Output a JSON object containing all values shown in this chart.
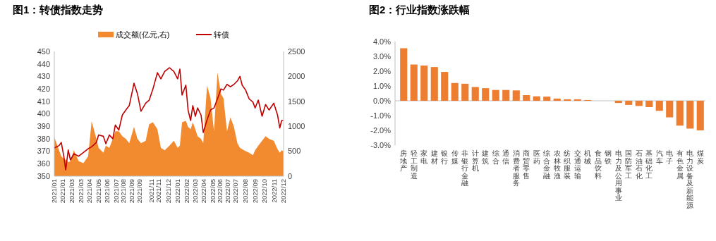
{
  "chart_data": [
    {
      "type": "line",
      "title": "图1：转债指数走势",
      "legend": "top",
      "x": [
        "2021-01-04",
        "2021-01-19",
        "2021-01-26",
        "2021-02-03",
        "2021-02-09",
        "2021-02-17",
        "2021-02-24",
        "2021-03-07",
        "2021-03-22",
        "2021-04-06",
        "2021-04-21",
        "2021-05-02",
        "2021-05-17",
        "2021-05-24",
        "2021-06-08",
        "2021-06-16",
        "2021-06-27",
        "2021-07-08",
        "2021-07-16",
        "2021-07-27",
        "2021-08-07",
        "2021-08-18",
        "2021-08-29",
        "2021-09-13",
        "2021-09-24",
        "2021-10-05",
        "2021-10-20",
        "2021-10-31",
        "2021-11-12",
        "2021-11-26",
        "2021-12-07",
        "2021-12-19",
        "2022-01-03",
        "2022-01-17",
        "2022-01-29",
        "2022-02-05",
        "2022-02-12",
        "2022-02-24",
        "2022-03-03",
        "2022-03-11",
        "2022-03-18",
        "2022-03-26",
        "2022-04-02",
        "2022-04-13",
        "2022-04-20",
        "2022-05-02",
        "2022-05-13",
        "2022-05-24",
        "2022-06-04",
        "2022-06-15",
        "2022-06-23",
        "2022-07-04",
        "2022-07-15",
        "2022-07-26",
        "2022-08-06",
        "2022-08-14",
        "2022-08-21",
        "2022-09-01",
        "2022-09-12",
        "2022-09-24",
        "2022-10-01",
        "2022-10-11",
        "2022-10-23",
        "2022-11-03",
        "2022-11-14",
        "2022-11-29",
        "2022-12-11",
        "2022-12-18",
        "2022-12-24",
        "2022-12-29"
      ],
      "series": [
        {
          "name": "成交额(亿元,右)",
          "type": "area",
          "axis": "y2",
          "color": "#f28a30",
          "values": [
            780,
            520,
            400,
            350,
            330,
            280,
            300,
            520,
            300,
            260,
            400,
            1100,
            750,
            570,
            470,
            610,
            570,
            750,
            900,
            900,
            800,
            750,
            660,
            990,
            750,
            660,
            710,
            1040,
            1080,
            940,
            570,
            520,
            610,
            710,
            570,
            610,
            1080,
            1110,
            990,
            940,
            1080,
            940,
            800,
            750,
            660,
            1820,
            1560,
            900,
            2080,
            1650,
            1560,
            900,
            1180,
            990,
            660,
            570,
            540,
            500,
            470,
            420,
            520,
            610,
            710,
            800,
            750,
            710,
            540,
            470,
            520,
            500
          ]
        },
        {
          "name": "转债",
          "type": "line",
          "color": "#c00000",
          "values": [
            372.6,
            374.5,
            377,
            366,
            355,
            371,
            363,
            368,
            366,
            369,
            372,
            373.5,
            377,
            383,
            382,
            376,
            383,
            380,
            391,
            387,
            399,
            403,
            406.6,
            424.5,
            416,
            402,
            408.5,
            411,
            420,
            433,
            428,
            434,
            437,
            434,
            428,
            435.8,
            415,
            423,
            403,
            394.6,
            406.6,
            398,
            404.7,
            399,
            385,
            395,
            403,
            404.7,
            412,
            420,
            419,
            423.6,
            421.7,
            423.6,
            426.4,
            430,
            423,
            419,
            412,
            409.4,
            404.7,
            411,
            398,
            407.5,
            403,
            408.5,
            399,
            388.7,
            394.6,
            394.6
          ]
        }
      ],
      "xlim": [
        "2021-01-04",
        "2022-12-30"
      ],
      "xticks": [
        {
          "value": "2021-01-04",
          "label": "2021/01"
        },
        {
          "value": "2021-01-29",
          "label": "2021/01"
        },
        {
          "value": "2021-03-01",
          "label": "2021/03"
        },
        {
          "value": "2021-03-29",
          "label": "2021/03"
        },
        {
          "value": "2021-04-25",
          "label": "2021/04"
        },
        {
          "value": "2021-05-23",
          "label": "2021/05"
        },
        {
          "value": "2021-06-20",
          "label": "2021/06"
        },
        {
          "value": "2021-07-18",
          "label": "2021/07"
        },
        {
          "value": "2021-08-10",
          "label": "2021/08"
        },
        {
          "value": "2021-09-05",
          "label": "2021/09"
        },
        {
          "value": "2021-09-30",
          "label": "2021/09"
        },
        {
          "value": "2021-11-06",
          "label": "2021/11"
        },
        {
          "value": "2021-11-30",
          "label": "2021/11"
        },
        {
          "value": "2021-12-31",
          "label": "2021/12"
        },
        {
          "value": "2022-01-29",
          "label": "2022/01"
        },
        {
          "value": "2022-02-26",
          "label": "2022/02"
        },
        {
          "value": "2022-03-26",
          "label": "2022/03"
        },
        {
          "value": "2022-04-22",
          "label": "2022/04"
        },
        {
          "value": "2022-05-20",
          "label": "2022/05"
        },
        {
          "value": "2022-06-12",
          "label": "2022/06"
        },
        {
          "value": "2022-07-05",
          "label": "2022/07"
        },
        {
          "value": "2022-07-31",
          "label": "2022/07"
        },
        {
          "value": "2022-08-31",
          "label": "2022/08"
        },
        {
          "value": "2022-09-30",
          "label": "2022/09"
        },
        {
          "value": "2022-10-31",
          "label": "2022/10"
        },
        {
          "value": "2022-11-30",
          "label": "2022/11"
        },
        {
          "value": "2022-12-29",
          "label": "2022/12"
        }
      ],
      "ylim": [
        350,
        450
      ],
      "yticks": [
        350,
        360,
        370,
        380,
        390,
        400,
        410,
        420,
        430,
        440,
        450
      ],
      "y2lim": [
        0,
        2500
      ],
      "y2ticks": [
        0,
        500,
        1000,
        1500,
        2000,
        2500
      ]
    },
    {
      "type": "bar",
      "title": "图2：行业指数涨跌幅",
      "color": "#ed7d31",
      "categories": [
        "房地产",
        "轻工制造",
        "家电",
        "建材",
        "银行",
        "传媒",
        "非银行金融",
        "计算机",
        "建筑",
        "综合",
        "通信",
        "消费者服务",
        "商贸零售",
        "医药",
        "综合金融",
        "农林牧渔",
        "纺织服装",
        "交通运输",
        "机械",
        "食品饮料",
        "钢铁",
        "电力及公用事业",
        "国防军工",
        "石油石化",
        "基础化工",
        "汽车",
        "电子",
        "有色金属",
        "电力设备及新能源",
        "煤炭"
      ],
      "values": [
        3.55,
        2.45,
        2.38,
        2.28,
        1.95,
        1.2,
        1.15,
        0.93,
        0.85,
        0.73,
        0.73,
        0.7,
        0.38,
        0.3,
        0.28,
        0.15,
        0.1,
        0.1,
        0.05,
        0,
        0,
        -0.15,
        -0.28,
        -0.35,
        -0.43,
        -0.68,
        -1.12,
        -1.68,
        -1.88,
        -2.0
      ],
      "ylim": [
        -3,
        4
      ],
      "yticks": [
        {
          "value": -3,
          "label": "-3.0%"
        },
        {
          "value": -2,
          "label": "-2.0%"
        },
        {
          "value": -1,
          "label": "-1.0%"
        },
        {
          "value": 0,
          "label": "0.0%"
        },
        {
          "value": 1,
          "label": "1.0%"
        },
        {
          "value": 2,
          "label": "2.0%"
        },
        {
          "value": 3,
          "label": "3.0%"
        },
        {
          "value": 4,
          "label": "4.0%"
        }
      ]
    }
  ]
}
